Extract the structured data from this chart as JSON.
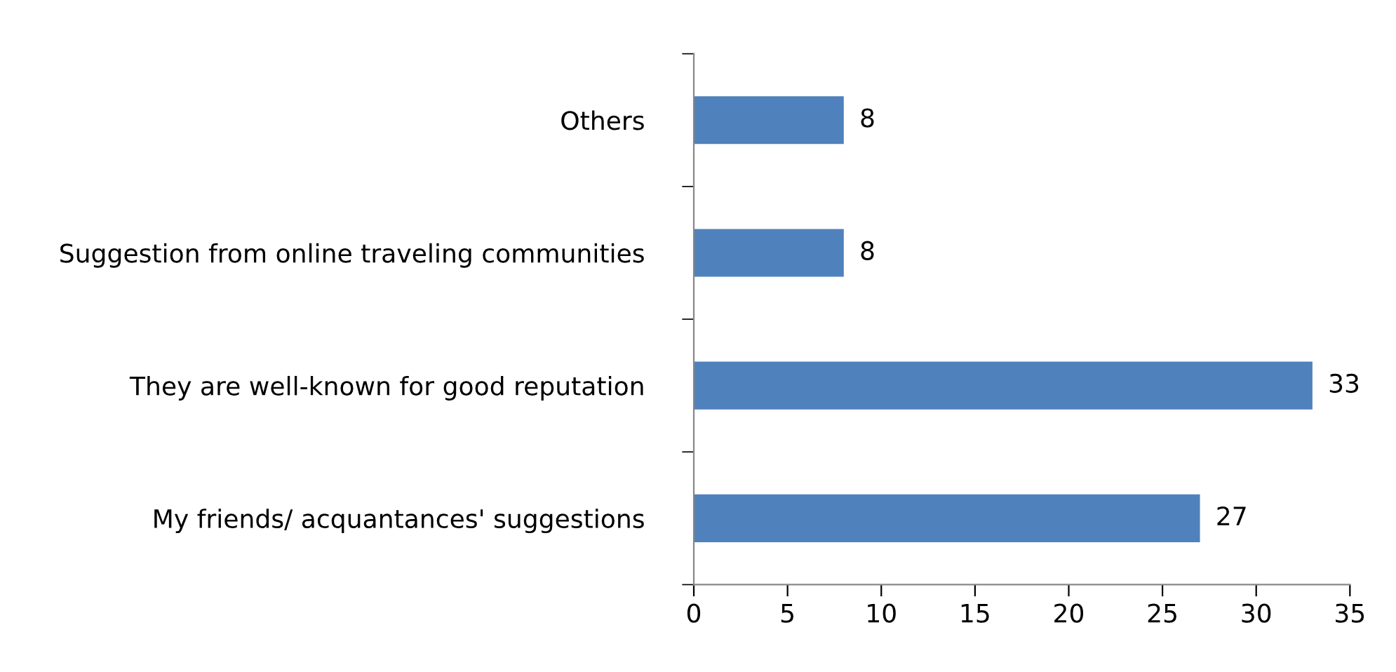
{
  "chart_data": {
    "type": "bar",
    "orientation": "horizontal",
    "categories": [
      "Others",
      "Suggestion from online traveling communities",
      "They are well-known for good reputation",
      "My friends/ acquantances' suggestions"
    ],
    "values": [
      8,
      8,
      33,
      27
    ],
    "color": "#4f81bd",
    "xlim": [
      0,
      35
    ],
    "xticks": [
      0,
      5,
      10,
      15,
      20,
      25,
      30,
      35
    ],
    "grid": false,
    "data_labels": true
  }
}
